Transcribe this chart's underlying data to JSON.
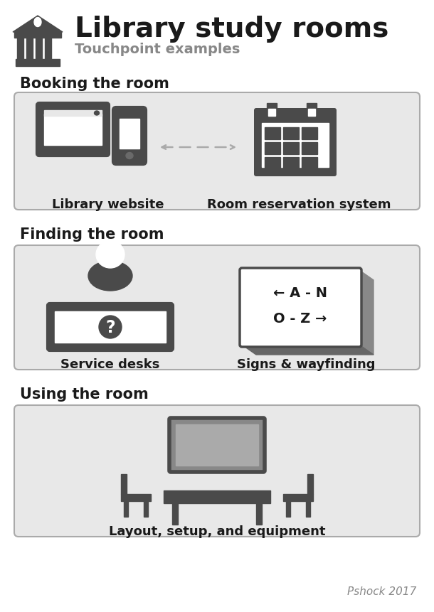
{
  "title": "Library study rooms",
  "subtitle": "Touchpoint examples",
  "section1_title": "Booking the room",
  "section2_title": "Finding the room",
  "section3_title": "Using the room",
  "label_website": "Library website",
  "label_reservation": "Room reservation system",
  "label_service": "Service desks",
  "label_signs": "Signs & wayfinding",
  "label_layout": "Layout, setup, and equipment",
  "credit": "Pshock 2017",
  "bg_color": "#ffffff",
  "box_bg": "#e8e8e8",
  "icon_color": "#4a4a4a",
  "text_color": "#1a1a1a",
  "subtitle_color": "#888888",
  "arrow_color": "#aaaaaa",
  "title_fontsize": 28,
  "subtitle_fontsize": 14,
  "section_fontsize": 15,
  "label_fontsize": 13
}
